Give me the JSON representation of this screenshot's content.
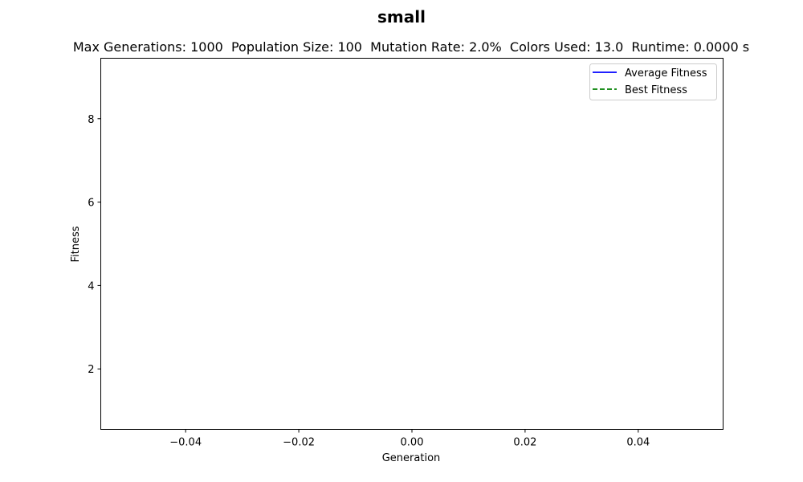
{
  "chart_data": {
    "type": "line",
    "title": "small",
    "subtitle_parts": {
      "max_generations": "Max Generations: 1000",
      "population_size": "Population Size: 100",
      "mutation_rate": "Mutation Rate: 2.0%",
      "colors_used": "Colors Used: 13.0",
      "runtime": "Runtime: 0.0000 s"
    },
    "xlabel": "Generation",
    "ylabel": "Fitness",
    "xlim": [
      -0.055,
      0.055
    ],
    "ylim": [
      0.55,
      9.45
    ],
    "xticks": [
      -0.04,
      -0.02,
      0.0,
      0.02,
      0.04
    ],
    "xtick_labels": [
      "−0.04",
      "−0.02",
      "0.00",
      "0.02",
      "0.04"
    ],
    "yticks": [
      2,
      4,
      6,
      8
    ],
    "ytick_labels": [
      "2",
      "4",
      "6",
      "8"
    ],
    "grid": false,
    "legend_position": "upper-right",
    "series": [
      {
        "name": "Average Fitness",
        "color": "#0000ff",
        "style": "solid",
        "x": [],
        "y": []
      },
      {
        "name": "Best Fitness",
        "color": "#008000",
        "style": "dashed",
        "x": [],
        "y": []
      }
    ]
  }
}
